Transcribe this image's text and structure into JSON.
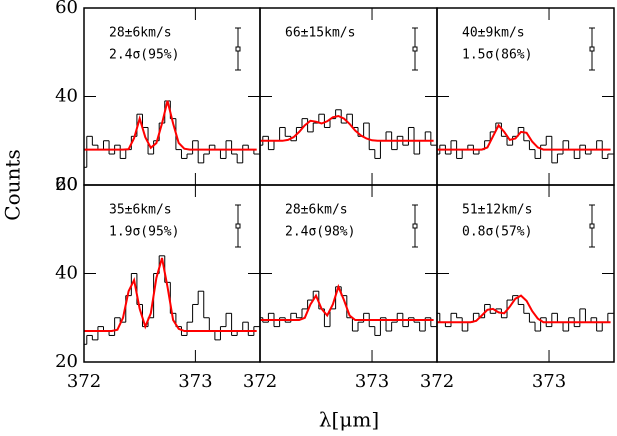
{
  "chart_data": [
    {
      "type": "line",
      "annotations": [
        "28±6km/s",
        "2.4σ(95%)"
      ],
      "ylabel": "Counts",
      "x": [
        372.0,
        372.05,
        372.1,
        372.15,
        372.2,
        372.25,
        372.3,
        372.35,
        372.4,
        372.45,
        372.5,
        372.55,
        372.6,
        372.65,
        372.7,
        372.75,
        372.8,
        372.85,
        372.9,
        372.95,
        373.0,
        373.05,
        373.1,
        373.15,
        373.2,
        373.25,
        373.3,
        373.35,
        373.4,
        373.45,
        373.5,
        373.55
      ],
      "xlim": [
        372,
        373.58
      ],
      "xticks": [
        372,
        373
      ],
      "ylim": [
        20,
        60
      ],
      "yticks": [
        20,
        40,
        60
      ],
      "series": [
        {
          "color": "#000000",
          "step": true,
          "values": [
            24,
            31,
            29,
            28,
            30,
            27,
            29,
            26,
            28,
            31,
            36,
            33,
            27,
            30,
            34,
            39,
            35,
            28,
            26,
            27,
            30,
            25,
            27,
            29,
            28,
            26,
            30,
            27,
            25,
            29,
            28,
            27
          ]
        },
        {
          "color": "#ff0000",
          "values": [
            28,
            28,
            28,
            28,
            28,
            28,
            28,
            28,
            28.1,
            30.6,
            35,
            30.8,
            28.4,
            29.5,
            33.9,
            39,
            33.9,
            29.5,
            28.2,
            28,
            28,
            28,
            28,
            28,
            28,
            28,
            28,
            28,
            28,
            28,
            28,
            28
          ]
        }
      ]
    },
    {
      "type": "line",
      "annotations": [
        "66±15km/s",
        ""
      ],
      "x": [
        372.0,
        372.05,
        372.1,
        372.15,
        372.2,
        372.25,
        372.3,
        372.35,
        372.4,
        372.45,
        372.5,
        372.55,
        372.6,
        372.65,
        372.7,
        372.75,
        372.8,
        372.85,
        372.9,
        372.95,
        373.0,
        373.05,
        373.1,
        373.15,
        373.2,
        373.25,
        373.3,
        373.35,
        373.4,
        373.45,
        373.5,
        373.55
      ],
      "xlim": [
        372,
        373.58
      ],
      "xticks": [
        372,
        373
      ],
      "ylim": [
        20,
        60
      ],
      "yticks": [
        20,
        40,
        60
      ],
      "series": [
        {
          "color": "#000000",
          "step": true,
          "values": [
            29,
            31,
            28,
            30,
            33,
            31,
            30,
            33,
            35,
            32,
            34,
            36,
            33,
            35,
            37,
            34,
            36,
            33,
            31,
            34,
            28,
            26,
            30,
            32,
            28,
            31,
            29,
            33,
            27,
            30,
            32,
            29
          ]
        },
        {
          "color": "#ff0000",
          "values": [
            30,
            30,
            30,
            30,
            30,
            30.2,
            30.8,
            32,
            33.5,
            34.5,
            34.3,
            33.9,
            34.4,
            35.3,
            35.6,
            35,
            33.8,
            32.3,
            31.2,
            30.5,
            30.1,
            30,
            30,
            30,
            30,
            30,
            30,
            30,
            30,
            30,
            30,
            30
          ]
        }
      ]
    },
    {
      "type": "line",
      "annotations": [
        "40±9km/s",
        "1.5σ(86%)"
      ],
      "x": [
        372.0,
        372.05,
        372.1,
        372.15,
        372.2,
        372.25,
        372.3,
        372.35,
        372.4,
        372.45,
        372.5,
        372.55,
        372.6,
        372.65,
        372.7,
        372.75,
        372.8,
        372.85,
        372.9,
        372.95,
        373.0,
        373.05,
        373.1,
        373.15,
        373.2,
        373.25,
        373.3,
        373.35,
        373.4,
        373.45,
        373.5,
        373.55
      ],
      "xlim": [
        372,
        373.58
      ],
      "xticks": [
        372,
        373
      ],
      "ylim": [
        20,
        60
      ],
      "yticks": [
        20,
        40,
        60
      ],
      "series": [
        {
          "color": "#000000",
          "step": true,
          "values": [
            27,
            29,
            27,
            30,
            26,
            28,
            29,
            27,
            28,
            30,
            32,
            34,
            31,
            29,
            31,
            33,
            30,
            28,
            26,
            29,
            31,
            25,
            27,
            30,
            28,
            26,
            29,
            27,
            28,
            30,
            26,
            27
          ]
        },
        {
          "color": "#ff0000",
          "values": [
            28,
            28,
            28,
            28,
            28,
            28,
            28,
            28,
            28,
            28.5,
            31,
            33.5,
            32,
            30.2,
            30.5,
            32,
            31.8,
            29.8,
            28.5,
            28,
            28,
            28,
            28,
            28,
            28,
            28,
            28,
            28,
            28,
            28,
            28,
            28
          ]
        }
      ]
    },
    {
      "type": "line",
      "annotations": [
        "35±6km/s",
        "1.9σ(95%)"
      ],
      "x": [
        372.0,
        372.05,
        372.1,
        372.15,
        372.2,
        372.25,
        372.3,
        372.35,
        372.4,
        372.45,
        372.5,
        372.55,
        372.6,
        372.65,
        372.7,
        372.75,
        372.8,
        372.85,
        372.9,
        372.95,
        373.0,
        373.05,
        373.1,
        373.15,
        373.2,
        373.25,
        373.3,
        373.35,
        373.4,
        373.45,
        373.5,
        373.55
      ],
      "xlim": [
        372,
        373.58
      ],
      "xticks": [
        372,
        373
      ],
      "ylim": [
        20,
        60
      ],
      "yticks": [
        20,
        40,
        60
      ],
      "series": [
        {
          "color": "#000000",
          "step": true,
          "values": [
            24,
            26,
            25,
            28,
            27,
            26,
            30,
            29,
            35,
            40,
            33,
            28,
            30,
            40,
            44,
            38,
            31,
            28,
            26,
            29,
            33,
            36,
            30,
            27,
            25,
            28,
            31,
            26,
            27,
            29,
            26,
            28
          ]
        },
        {
          "color": "#ff0000",
          "values": [
            27,
            27,
            27,
            27,
            27,
            27,
            27.3,
            30,
            36,
            38.5,
            32,
            28,
            31,
            39,
            43.5,
            37,
            29.5,
            27.5,
            27,
            27,
            27,
            27,
            27,
            27,
            27,
            27,
            27,
            27,
            27,
            27,
            27,
            27
          ]
        }
      ]
    },
    {
      "type": "line",
      "annotations": [
        "28±6km/s",
        "2.4σ(98%)"
      ],
      "xlabel": "λ[μm]",
      "x": [
        372.0,
        372.05,
        372.1,
        372.15,
        372.2,
        372.25,
        372.3,
        372.35,
        372.4,
        372.45,
        372.5,
        372.55,
        372.6,
        372.65,
        372.7,
        372.75,
        372.8,
        372.85,
        372.9,
        372.95,
        373.0,
        373.05,
        373.1,
        373.15,
        373.2,
        373.25,
        373.3,
        373.35,
        373.4,
        373.45,
        373.5,
        373.55
      ],
      "xlim": [
        372,
        373.58
      ],
      "xticks": [
        372,
        373
      ],
      "ylim": [
        20,
        60
      ],
      "yticks": [
        20,
        40,
        60
      ],
      "series": [
        {
          "color": "#000000",
          "step": true,
          "values": [
            30,
            29,
            31,
            28,
            30,
            29,
            31,
            30,
            32,
            34,
            36,
            32,
            28,
            32,
            37,
            35,
            30,
            27,
            29,
            31,
            28,
            26,
            30,
            27,
            29,
            31,
            28,
            30,
            29,
            27,
            30,
            28
          ]
        },
        {
          "color": "#ff0000",
          "values": [
            29.5,
            29.5,
            29.5,
            29.5,
            29.5,
            29.5,
            29.5,
            29.5,
            30,
            33,
            35,
            32,
            30.5,
            33,
            37,
            34,
            30.5,
            29.5,
            29.5,
            29.5,
            29.5,
            29.5,
            29.5,
            29.5,
            29.5,
            29.5,
            29.5,
            29.5,
            29.5,
            29.5,
            29.5,
            29.5
          ]
        }
      ]
    },
    {
      "type": "line",
      "annotations": [
        "51±12km/s",
        "0.8σ(57%)"
      ],
      "x": [
        372.0,
        372.05,
        372.1,
        372.15,
        372.2,
        372.25,
        372.3,
        372.35,
        372.4,
        372.45,
        372.5,
        372.55,
        372.6,
        372.65,
        372.7,
        372.75,
        372.8,
        372.85,
        372.9,
        372.95,
        373.0,
        373.05,
        373.1,
        373.15,
        373.2,
        373.25,
        373.3,
        373.35,
        373.4,
        373.45,
        373.5,
        373.55
      ],
      "xlim": [
        372,
        373.58
      ],
      "xticks": [
        372,
        373
      ],
      "ylim": [
        20,
        60
      ],
      "yticks": [
        20,
        40,
        60
      ],
      "series": [
        {
          "color": "#000000",
          "step": true,
          "values": [
            31,
            29,
            28,
            31,
            30,
            27,
            29,
            31,
            30,
            33,
            31,
            32,
            30,
            34,
            35,
            33,
            31,
            29,
            27,
            30,
            28,
            31,
            29,
            27,
            30,
            28,
            32,
            29,
            30,
            27,
            29,
            31
          ]
        },
        {
          "color": "#ff0000",
          "values": [
            29,
            29,
            29,
            29,
            29,
            29,
            29,
            29.3,
            30.5,
            31.8,
            32,
            31.2,
            31,
            32.5,
            34.3,
            35,
            33.8,
            31.5,
            29.8,
            29,
            29,
            29,
            29,
            29,
            29,
            29,
            29,
            29,
            29,
            29,
            29,
            29
          ]
        }
      ]
    }
  ]
}
